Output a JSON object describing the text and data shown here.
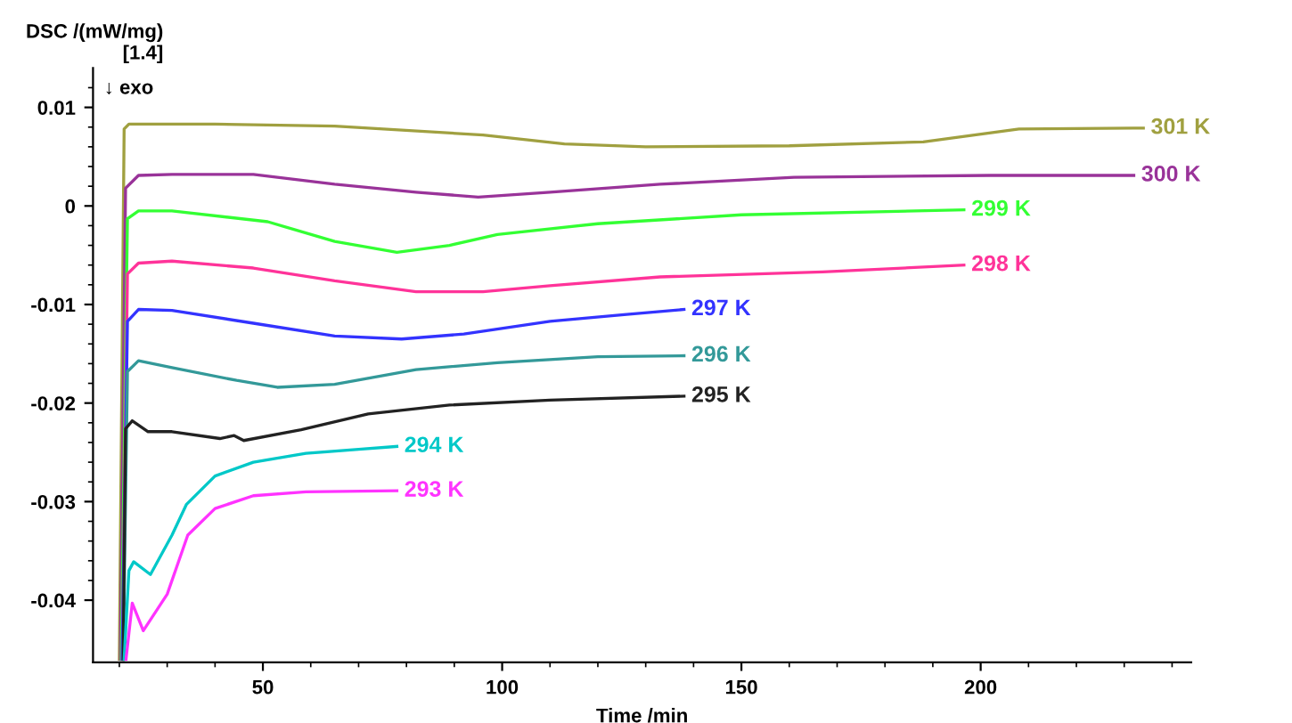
{
  "chart_data": {
    "type": "line",
    "xlabel": "Time /min",
    "ylabel": "DSC /(mW/mg)\n[1.4]",
    "annotations": [
      "↓ exo"
    ],
    "xlim": [
      14.5,
      244
    ],
    "ylim": [
      -0.0463,
      0.014
    ],
    "xticks": [
      {
        "value": 20,
        "label": null
      },
      {
        "value": 30,
        "label": null
      },
      {
        "value": 40,
        "label": null
      },
      50,
      {
        "value": 60,
        "label": null
      },
      {
        "value": 70,
        "label": null
      },
      {
        "value": 80,
        "label": null
      },
      {
        "value": 90,
        "label": null
      },
      100,
      {
        "value": 110,
        "label": null
      },
      {
        "value": 120,
        "label": null
      },
      {
        "value": 130,
        "label": null
      },
      {
        "value": 140,
        "label": null
      },
      150,
      {
        "value": 160,
        "label": null
      },
      {
        "value": 170,
        "label": null
      },
      {
        "value": 180,
        "label": null
      },
      {
        "value": 190,
        "label": null
      },
      200,
      {
        "value": 210,
        "label": null
      },
      {
        "value": 220,
        "label": null
      },
      {
        "value": 230,
        "label": null
      },
      {
        "value": 240,
        "label": null
      }
    ],
    "yticks": [
      -0.04,
      {
        "value": -0.038,
        "label": null
      },
      {
        "value": -0.036,
        "label": null
      },
      {
        "value": -0.034,
        "label": null
      },
      {
        "value": -0.032,
        "label": null
      },
      -0.03,
      {
        "value": -0.028,
        "label": null
      },
      {
        "value": -0.026,
        "label": null
      },
      {
        "value": -0.024,
        "label": null
      },
      {
        "value": -0.022,
        "label": null
      },
      -0.02,
      {
        "value": -0.018,
        "label": null
      },
      {
        "value": -0.016,
        "label": null
      },
      {
        "value": -0.014,
        "label": null
      },
      {
        "value": -0.012,
        "label": null
      },
      -0.01,
      {
        "value": -0.008,
        "label": null
      },
      {
        "value": -0.006,
        "label": null
      },
      {
        "value": -0.004,
        "label": null
      },
      {
        "value": -0.002,
        "label": null
      },
      0,
      {
        "value": 0.002,
        "label": null
      },
      {
        "value": 0.004,
        "label": null
      },
      {
        "value": 0.006,
        "label": null
      },
      {
        "value": 0.008,
        "label": null
      },
      0.01,
      {
        "value": 0.012,
        "label": null
      }
    ],
    "grid": false,
    "legend": false,
    "marker": "none",
    "line_style": "solid",
    "series": [
      {
        "name": "301 K",
        "color": "#a0a040",
        "x": [
          20,
          21,
          22,
          40,
          65,
          96,
          113,
          130,
          160,
          188,
          208,
          234
        ],
        "values": [
          -0.046,
          0.0078,
          0.0083,
          0.0083,
          0.0081,
          0.0072,
          0.0063,
          0.006,
          0.0061,
          0.0065,
          0.0078,
          0.0079
        ]
      },
      {
        "name": "300 K",
        "color": "#993399",
        "x": [
          20.2,
          21.3,
          24,
          31,
          48,
          65,
          82,
          95,
          110,
          133,
          161,
          202,
          232
        ],
        "values": [
          -0.046,
          0.0018,
          0.0031,
          0.0032,
          0.0032,
          0.0022,
          0.0014,
          0.0009,
          0.0014,
          0.0022,
          0.0029,
          0.0031,
          0.0031
        ]
      },
      {
        "name": "299 K",
        "color": "#33ff33",
        "x": [
          20.4,
          21.7,
          24,
          31,
          51,
          65,
          78,
          89,
          99,
          120,
          150,
          196.5
        ],
        "values": [
          -0.046,
          -0.0013,
          -0.0005,
          -0.0005,
          -0.0016,
          -0.0036,
          -0.0047,
          -0.004,
          -0.0029,
          -0.0018,
          -0.0009,
          -0.0004
        ]
      },
      {
        "name": "298 K",
        "color": "#ff3399",
        "x": [
          20.6,
          21.7,
          24,
          31,
          48,
          65,
          82,
          96,
          110,
          133,
          167,
          196.5
        ],
        "values": [
          -0.046,
          -0.0069,
          -0.0058,
          -0.0056,
          -0.0063,
          -0.0076,
          -0.0087,
          -0.0087,
          -0.0081,
          -0.0072,
          -0.0067,
          -0.006
        ]
      },
      {
        "name": "297 K",
        "color": "#3333ff",
        "x": [
          20.6,
          21.7,
          24,
          31,
          48,
          65,
          79,
          92,
          110,
          126,
          138
        ],
        "values": [
          -0.046,
          -0.0117,
          -0.0105,
          -0.0106,
          -0.0119,
          -0.0132,
          -0.0135,
          -0.013,
          -0.0117,
          -0.011,
          -0.0105
        ]
      },
      {
        "name": "296 K",
        "color": "#339999",
        "x": [
          20.8,
          21.7,
          24,
          31,
          44.5,
          53,
          65,
          82,
          99,
          120,
          138
        ],
        "values": [
          -0.046,
          -0.0168,
          -0.0157,
          -0.0164,
          -0.0177,
          -0.0184,
          -0.0181,
          -0.0166,
          -0.0159,
          -0.0153,
          -0.0152
        ]
      },
      {
        "name": "295 K",
        "color": "#222222",
        "x": [
          20.8,
          21.3,
          22.7,
          26,
          31,
          41,
          44,
          46,
          58,
          72,
          89,
          110,
          138
        ],
        "values": [
          -0.046,
          -0.0226,
          -0.0218,
          -0.0229,
          -0.0229,
          -0.0236,
          -0.0233,
          -0.0238,
          -0.0227,
          -0.0211,
          -0.0202,
          -0.0197,
          -0.0193
        ]
      },
      {
        "name": "294 K",
        "color": "#00c8c8",
        "x": [
          21,
          22,
          23,
          26.5,
          31,
          34,
          40,
          48,
          59,
          70,
          78
        ],
        "values": [
          -0.046,
          -0.037,
          -0.0361,
          -0.0374,
          -0.0334,
          -0.0303,
          -0.0274,
          -0.026,
          -0.0251,
          -0.0247,
          -0.0244
        ]
      },
      {
        "name": "293 K",
        "color": "#ff33ff",
        "x": [
          21.4,
          22.7,
          25,
          30,
          34.3,
          40,
          48,
          59,
          78
        ],
        "values": [
          -0.046,
          -0.0403,
          -0.0431,
          -0.0394,
          -0.0334,
          -0.0307,
          -0.0294,
          -0.029,
          -0.0289
        ]
      }
    ]
  }
}
